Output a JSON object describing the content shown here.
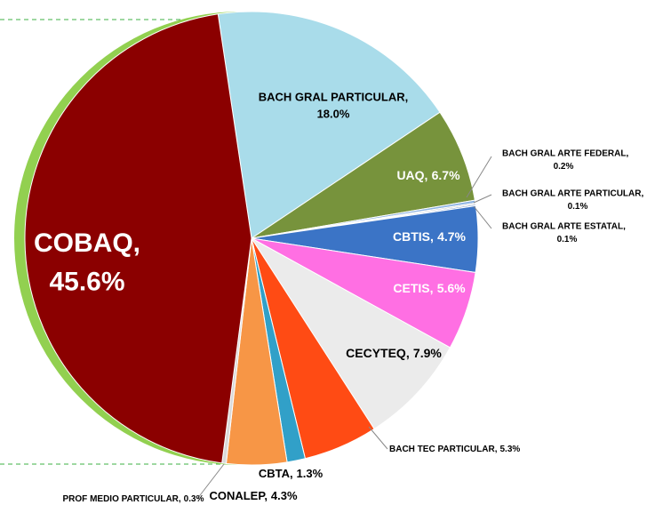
{
  "chart_data": {
    "type": "pie",
    "categories": [
      "BACH GRAL PARTICULAR,",
      "UAQ,",
      "BACH GRAL ARTE FEDERAL,",
      "BACH GRAL ARTE PARTICULAR,",
      "BACH GRAL ARTE ESTATAL,",
      "CBTIS,",
      "CETIS,",
      "CECYTEQ,",
      "BACH TEC PARTICULAR,",
      "CBTA,",
      "CONALEP,",
      "PROF MEDIO PARTICULAR,",
      "COBAQ,"
    ],
    "values": [
      18.0,
      6.7,
      0.2,
      0.1,
      0.1,
      4.7,
      5.6,
      7.9,
      5.3,
      1.3,
      4.3,
      0.3,
      45.6
    ],
    "value_labels": [
      "18.0%",
      "6.7%",
      "0.2%",
      "0.1%",
      "0.1%",
      "4.7%",
      "5.6%",
      "7.9%",
      "5.3%",
      "1.3%",
      "4.3%",
      "0.3%",
      "45.6%"
    ],
    "colors": [
      "#a9dcea",
      "#77933c",
      "#8eb4e3",
      "#c0c0c0",
      "#7f9fcf",
      "#3b74c6",
      "#ff6fe3",
      "#ebebeb",
      "#ff4b14",
      "#31a0c8",
      "#f79646",
      "#d9d9d9",
      "#8b0000"
    ]
  }
}
